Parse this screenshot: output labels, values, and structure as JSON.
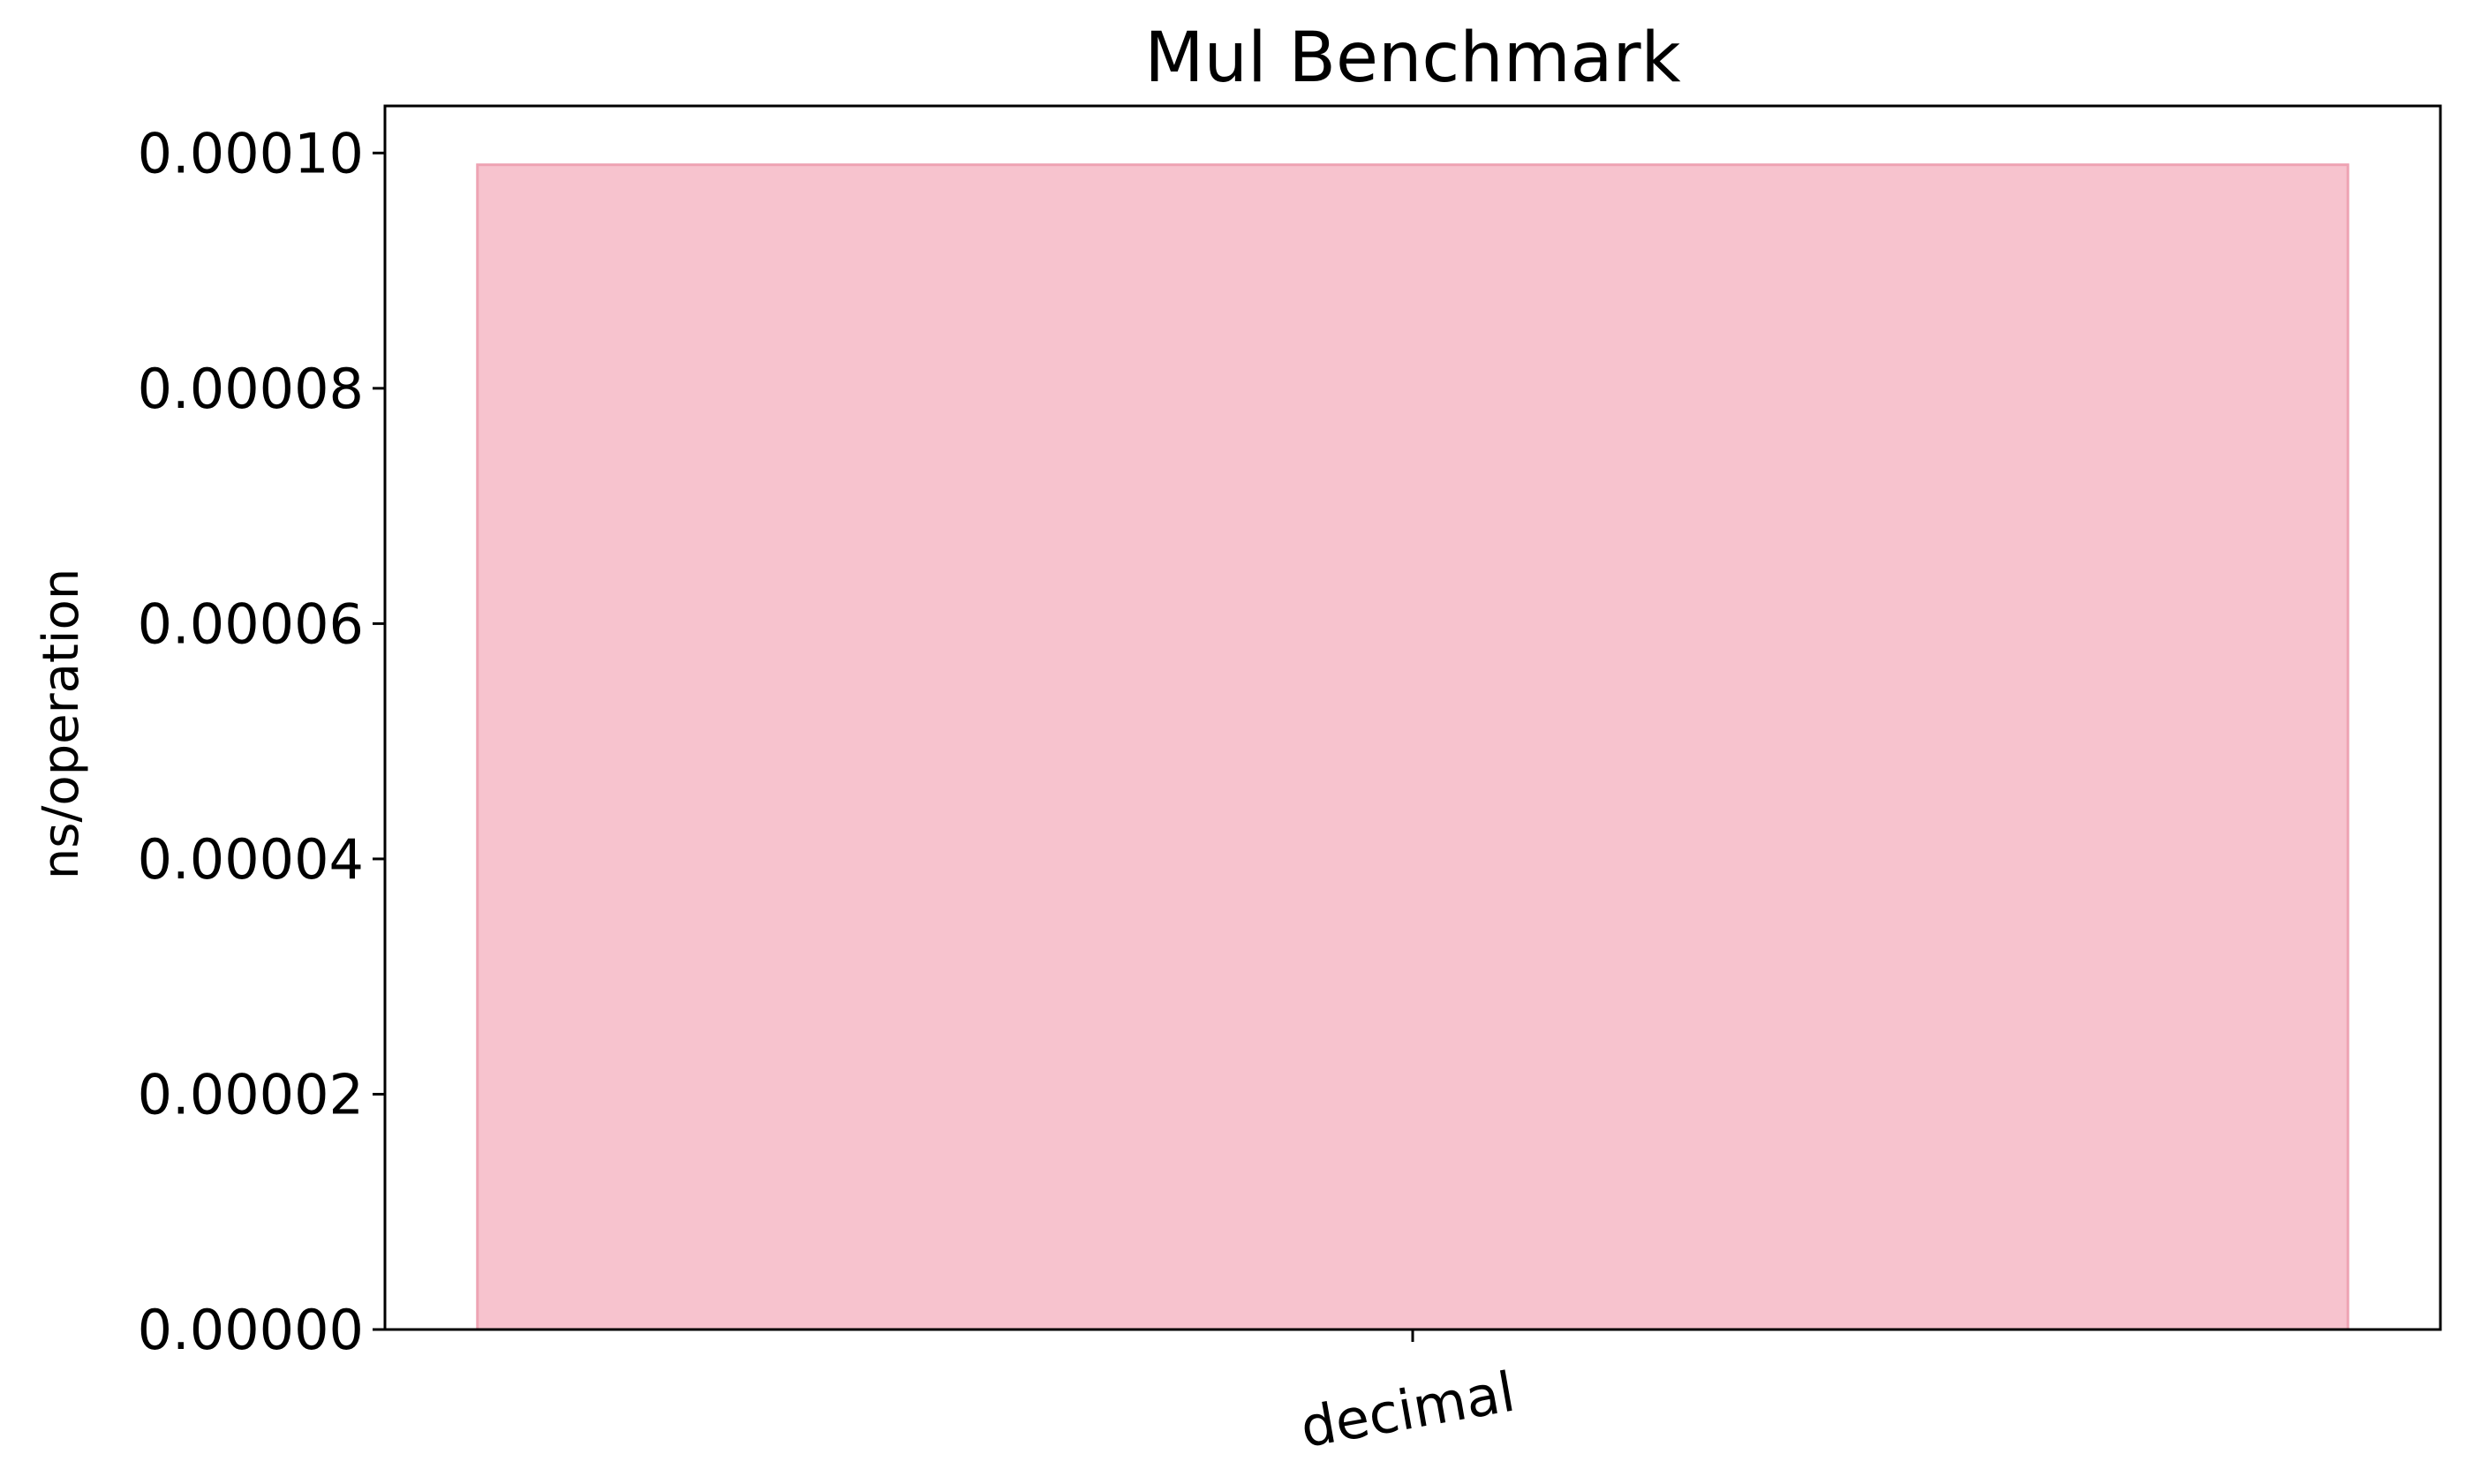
{
  "chart_data": {
    "type": "bar",
    "title": "Mul Benchmark",
    "xlabel": "",
    "ylabel": "ns/operation",
    "categories": [
      "decimal"
    ],
    "values": [
      9.9e-05
    ],
    "ylim": [
      0,
      0.000104
    ],
    "yticks": [
      "0.00000",
      "0.00002",
      "0.00004",
      "0.00006",
      "0.00008",
      "0.00010"
    ],
    "ytick_values": [
      0,
      2e-05,
      4e-05,
      6e-05,
      8e-05,
      0.0001
    ],
    "bar_color": "#f7c3ce",
    "bar_edge_color": "#eea3b3",
    "grid": false,
    "legend": "none"
  }
}
